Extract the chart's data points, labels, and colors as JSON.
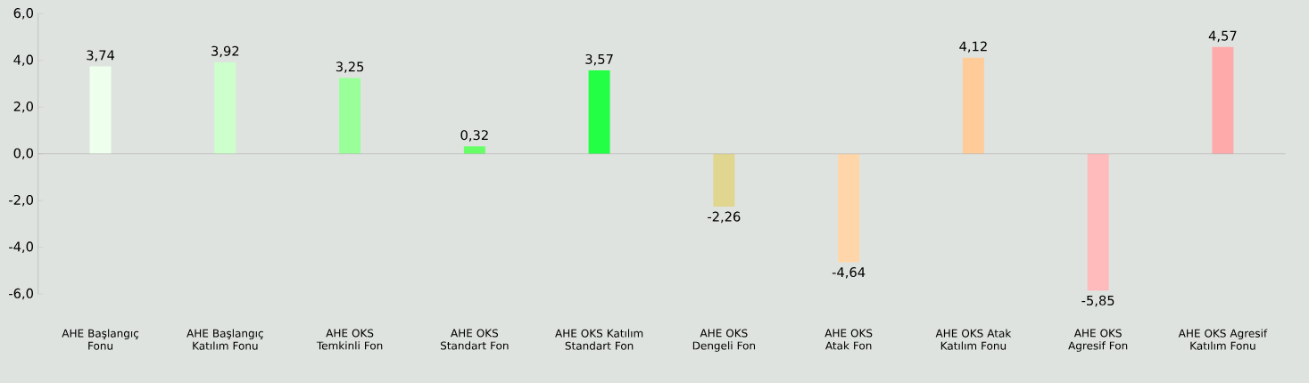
{
  "chart_data": {
    "type": "bar",
    "categories": [
      "AHE Başlangıç Fonu",
      "AHE Başlangıç Katılım Fonu",
      "AHE OKS Temkinli Fon",
      "AHE OKS Standart Fon",
      "AHE OKS Katılım Standart Fon",
      "AHE OKS Dengeli Fon",
      "AHE OKS Atak Fon",
      "AHE OKS Atak Katılım Fonu",
      "AHE OKS Agresif Fon",
      "AHE OKS Agresif Katılım Fonu"
    ],
    "values": [
      3.74,
      3.92,
      3.25,
      0.32,
      3.57,
      -2.26,
      -4.64,
      4.12,
      -5.85,
      4.57
    ],
    "value_labels": [
      "3,74",
      "3,92",
      "3,25",
      "0,32",
      "3,57",
      "-2,26",
      "-4,64",
      "4,12",
      "-5,85",
      "4,57"
    ],
    "colors": [
      "#eeffee",
      "#ccffcc",
      "#99ff99",
      "#66ff66",
      "#22ff44",
      "#e0d68f",
      "#ffd6aa",
      "#ffcc99",
      "#ffbbbb",
      "#ffaaaa"
    ],
    "ylim": [
      -6,
      6
    ],
    "yticks": [
      {
        "value": -6,
        "label": "-6,0"
      },
      {
        "value": -4,
        "label": "-4,0"
      },
      {
        "value": -2,
        "label": "-2,0"
      },
      {
        "value": 0,
        "label": "0,0"
      },
      {
        "value": 2,
        "label": "2,0"
      },
      {
        "value": 4,
        "label": "4,0"
      },
      {
        "value": 6,
        "label": "6,0"
      }
    ]
  }
}
